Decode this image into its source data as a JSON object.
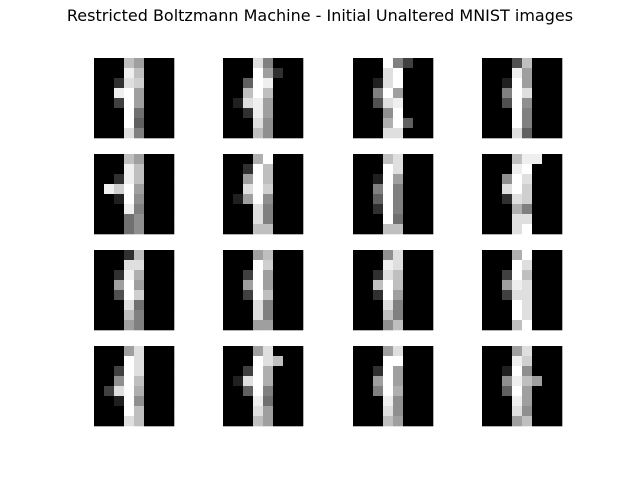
{
  "chart_data": {
    "type": "heatmap",
    "title": "Restricted Boltzmann Machine - Initial Unaltered MNIST images",
    "colormap": "gray",
    "value_range": [
      0,
      16
    ],
    "panel_grid": {
      "rows": 4,
      "cols": 4
    },
    "image_size": {
      "rows": 8,
      "cols": 8
    },
    "axes_visible": false,
    "images": [
      [
        [
          0,
          0,
          0,
          12,
          10,
          0,
          0,
          0
        ],
        [
          0,
          0,
          0,
          15,
          12,
          0,
          0,
          0
        ],
        [
          0,
          0,
          3,
          14,
          13,
          0,
          0,
          0
        ],
        [
          0,
          0,
          15,
          16,
          10,
          0,
          0,
          0
        ],
        [
          0,
          0,
          4,
          16,
          10,
          0,
          0,
          0
        ],
        [
          0,
          0,
          0,
          16,
          7,
          0,
          0,
          0
        ],
        [
          0,
          0,
          0,
          16,
          6,
          0,
          0,
          0
        ],
        [
          0,
          0,
          0,
          14,
          8,
          0,
          0,
          0
        ]
      ],
      [
        [
          0,
          0,
          0,
          14,
          8,
          0,
          0,
          0
        ],
        [
          0,
          0,
          0,
          16,
          10,
          3,
          0,
          0
        ],
        [
          0,
          0,
          6,
          16,
          15,
          0,
          0,
          0
        ],
        [
          0,
          0,
          12,
          16,
          12,
          0,
          0,
          0
        ],
        [
          0,
          2,
          14,
          15,
          10,
          0,
          0,
          0
        ],
        [
          0,
          0,
          3,
          15,
          10,
          0,
          0,
          0
        ],
        [
          0,
          0,
          0,
          14,
          9,
          0,
          0,
          0
        ],
        [
          0,
          0,
          0,
          12,
          9,
          0,
          0,
          0
        ]
      ],
      [
        [
          0,
          0,
          0,
          16,
          8,
          4,
          0,
          0
        ],
        [
          0,
          0,
          0,
          14,
          16,
          0,
          0,
          0
        ],
        [
          0,
          0,
          2,
          14,
          16,
          0,
          0,
          0
        ],
        [
          0,
          0,
          8,
          16,
          10,
          0,
          0,
          0
        ],
        [
          0,
          0,
          5,
          14,
          15,
          0,
          0,
          0
        ],
        [
          0,
          0,
          0,
          9,
          16,
          0,
          0,
          0
        ],
        [
          0,
          0,
          0,
          11,
          16,
          6,
          0,
          0
        ],
        [
          0,
          0,
          0,
          14,
          14,
          0,
          0,
          0
        ]
      ],
      [
        [
          0,
          0,
          0,
          5,
          12,
          0,
          0,
          0
        ],
        [
          0,
          0,
          0,
          15,
          10,
          0,
          0,
          0
        ],
        [
          0,
          0,
          2,
          16,
          10,
          0,
          0,
          0
        ],
        [
          0,
          0,
          8,
          16,
          14,
          0,
          0,
          0
        ],
        [
          0,
          0,
          5,
          16,
          9,
          0,
          0,
          0
        ],
        [
          0,
          0,
          0,
          16,
          8,
          0,
          0,
          0
        ],
        [
          0,
          0,
          0,
          16,
          8,
          0,
          0,
          0
        ],
        [
          0,
          0,
          0,
          14,
          6,
          0,
          0,
          0
        ]
      ],
      [
        [
          0,
          0,
          0,
          12,
          10,
          0,
          0,
          0
        ],
        [
          0,
          0,
          0,
          15,
          12,
          0,
          0,
          0
        ],
        [
          0,
          0,
          3,
          15,
          12,
          0,
          0,
          0
        ],
        [
          0,
          15,
          13,
          16,
          10,
          0,
          0,
          0
        ],
        [
          0,
          0,
          2,
          16,
          9,
          0,
          0,
          0
        ],
        [
          0,
          0,
          0,
          15,
          8,
          0,
          0,
          0
        ],
        [
          0,
          0,
          0,
          7,
          9,
          0,
          0,
          0
        ],
        [
          0,
          0,
          0,
          7,
          9,
          0,
          0,
          0
        ]
      ],
      [
        [
          0,
          0,
          0,
          11,
          16,
          0,
          0,
          0
        ],
        [
          0,
          0,
          3,
          16,
          12,
          0,
          0,
          0
        ],
        [
          0,
          0,
          10,
          16,
          12,
          0,
          0,
          0
        ],
        [
          0,
          0,
          14,
          16,
          13,
          0,
          0,
          0
        ],
        [
          0,
          2,
          10,
          16,
          9,
          0,
          0,
          0
        ],
        [
          0,
          0,
          0,
          14,
          8,
          0,
          0,
          0
        ],
        [
          0,
          0,
          0,
          14,
          8,
          0,
          0,
          0
        ],
        [
          0,
          0,
          0,
          12,
          12,
          0,
          0,
          0
        ]
      ],
      [
        [
          0,
          0,
          0,
          12,
          14,
          0,
          0,
          0
        ],
        [
          0,
          0,
          0,
          16,
          14,
          0,
          0,
          0
        ],
        [
          0,
          0,
          2,
          16,
          10,
          0,
          0,
          0
        ],
        [
          0,
          0,
          8,
          16,
          8,
          0,
          0,
          0
        ],
        [
          0,
          0,
          6,
          16,
          8,
          0,
          0,
          0
        ],
        [
          0,
          0,
          3,
          16,
          8,
          0,
          0,
          0
        ],
        [
          0,
          0,
          0,
          16,
          7,
          0,
          0,
          0
        ],
        [
          0,
          0,
          0,
          12,
          12,
          0,
          0,
          0
        ]
      ],
      [
        [
          0,
          0,
          0,
          12,
          15,
          15,
          0,
          0
        ],
        [
          0,
          0,
          0,
          15,
          16,
          0,
          0,
          0
        ],
        [
          0,
          0,
          9,
          16,
          14,
          0,
          0,
          0
        ],
        [
          0,
          0,
          14,
          16,
          13,
          0,
          0,
          0
        ],
        [
          0,
          0,
          3,
          14,
          13,
          0,
          0,
          0
        ],
        [
          0,
          0,
          0,
          11,
          8,
          0,
          0,
          0
        ],
        [
          0,
          0,
          0,
          14,
          14,
          0,
          0,
          0
        ],
        [
          0,
          0,
          0,
          14,
          16,
          0,
          0,
          0
        ]
      ],
      [
        [
          0,
          0,
          0,
          3,
          12,
          0,
          0,
          0
        ],
        [
          0,
          0,
          0,
          14,
          14,
          0,
          0,
          0
        ],
        [
          0,
          0,
          3,
          15,
          11,
          0,
          0,
          0
        ],
        [
          0,
          0,
          10,
          16,
          10,
          0,
          0,
          0
        ],
        [
          0,
          0,
          5,
          16,
          13,
          0,
          0,
          0
        ],
        [
          0,
          0,
          0,
          14,
          7,
          0,
          0,
          0
        ],
        [
          0,
          0,
          0,
          12,
          8,
          0,
          0,
          0
        ],
        [
          0,
          0,
          0,
          10,
          8,
          0,
          0,
          0
        ]
      ],
      [
        [
          0,
          0,
          0,
          10,
          12,
          0,
          0,
          0
        ],
        [
          0,
          0,
          0,
          16,
          13,
          0,
          0,
          0
        ],
        [
          0,
          0,
          4,
          16,
          10,
          0,
          0,
          0
        ],
        [
          0,
          0,
          10,
          16,
          10,
          0,
          0,
          0
        ],
        [
          0,
          0,
          4,
          16,
          12,
          0,
          0,
          0
        ],
        [
          0,
          0,
          0,
          14,
          8,
          0,
          0,
          0
        ],
        [
          0,
          0,
          0,
          14,
          8,
          0,
          0,
          0
        ],
        [
          0,
          0,
          0,
          10,
          10,
          0,
          0,
          0
        ]
      ],
      [
        [
          0,
          0,
          0,
          9,
          14,
          0,
          0,
          0
        ],
        [
          0,
          0,
          0,
          15,
          14,
          0,
          0,
          0
        ],
        [
          0,
          0,
          3,
          14,
          12,
          0,
          0,
          0
        ],
        [
          0,
          0,
          12,
          16,
          12,
          0,
          0,
          0
        ],
        [
          0,
          0,
          3,
          16,
          10,
          0,
          0,
          0
        ],
        [
          0,
          0,
          0,
          14,
          8,
          0,
          0,
          0
        ],
        [
          0,
          0,
          0,
          12,
          8,
          0,
          0,
          0
        ],
        [
          0,
          0,
          0,
          9,
          12,
          0,
          0,
          0
        ]
      ],
      [
        [
          0,
          0,
          0,
          11,
          16,
          0,
          0,
          0
        ],
        [
          0,
          0,
          0,
          16,
          14,
          0,
          0,
          0
        ],
        [
          0,
          0,
          4,
          16,
          12,
          0,
          0,
          0
        ],
        [
          0,
          0,
          10,
          15,
          14,
          0,
          0,
          0
        ],
        [
          0,
          0,
          4,
          14,
          14,
          0,
          0,
          0
        ],
        [
          0,
          0,
          0,
          16,
          14,
          0,
          0,
          0
        ],
        [
          0,
          0,
          0,
          16,
          14,
          0,
          0,
          0
        ],
        [
          0,
          0,
          0,
          12,
          16,
          0,
          0,
          0
        ]
      ],
      [
        [
          0,
          0,
          0,
          10,
          14,
          0,
          0,
          0
        ],
        [
          0,
          0,
          0,
          16,
          14,
          0,
          0,
          0
        ],
        [
          0,
          0,
          4,
          16,
          14,
          0,
          0,
          0
        ],
        [
          0,
          0,
          9,
          16,
          12,
          0,
          0,
          0
        ],
        [
          0,
          4,
          14,
          16,
          11,
          0,
          0,
          0
        ],
        [
          0,
          0,
          2,
          16,
          9,
          0,
          0,
          0
        ],
        [
          0,
          0,
          0,
          16,
          12,
          0,
          0,
          0
        ],
        [
          0,
          0,
          0,
          14,
          12,
          0,
          0,
          0
        ]
      ],
      [
        [
          0,
          0,
          0,
          10,
          14,
          0,
          0,
          0
        ],
        [
          0,
          0,
          0,
          16,
          14,
          12,
          0,
          0
        ],
        [
          0,
          0,
          4,
          16,
          11,
          0,
          0,
          0
        ],
        [
          0,
          2,
          14,
          16,
          11,
          0,
          0,
          0
        ],
        [
          0,
          0,
          6,
          16,
          8,
          0,
          0,
          0
        ],
        [
          0,
          0,
          0,
          15,
          7,
          0,
          0,
          0
        ],
        [
          0,
          0,
          0,
          14,
          10,
          0,
          0,
          0
        ],
        [
          0,
          0,
          0,
          12,
          10,
          0,
          0,
          0
        ]
      ],
      [
        [
          0,
          0,
          0,
          10,
          14,
          0,
          0,
          0
        ],
        [
          0,
          0,
          0,
          16,
          16,
          0,
          0,
          0
        ],
        [
          0,
          0,
          3,
          16,
          10,
          0,
          0,
          0
        ],
        [
          0,
          0,
          10,
          16,
          10,
          0,
          0,
          0
        ],
        [
          0,
          0,
          8,
          16,
          11,
          0,
          0,
          0
        ],
        [
          0,
          0,
          0,
          15,
          9,
          0,
          0,
          0
        ],
        [
          0,
          0,
          0,
          14,
          9,
          0,
          0,
          0
        ],
        [
          0,
          0,
          0,
          12,
          10,
          0,
          0,
          0
        ]
      ],
      [
        [
          0,
          0,
          0,
          10,
          14,
          0,
          0,
          0
        ],
        [
          0,
          0,
          0,
          15,
          13,
          0,
          0,
          0
        ],
        [
          0,
          0,
          2,
          16,
          9,
          0,
          0,
          0
        ],
        [
          0,
          0,
          9,
          15,
          12,
          10,
          0,
          0
        ],
        [
          0,
          0,
          6,
          16,
          10,
          0,
          0,
          0
        ],
        [
          0,
          0,
          0,
          15,
          10,
          0,
          0,
          0
        ],
        [
          0,
          0,
          0,
          14,
          9,
          0,
          0,
          0
        ],
        [
          0,
          0,
          0,
          10,
          12,
          0,
          0,
          0
        ]
      ]
    ]
  }
}
